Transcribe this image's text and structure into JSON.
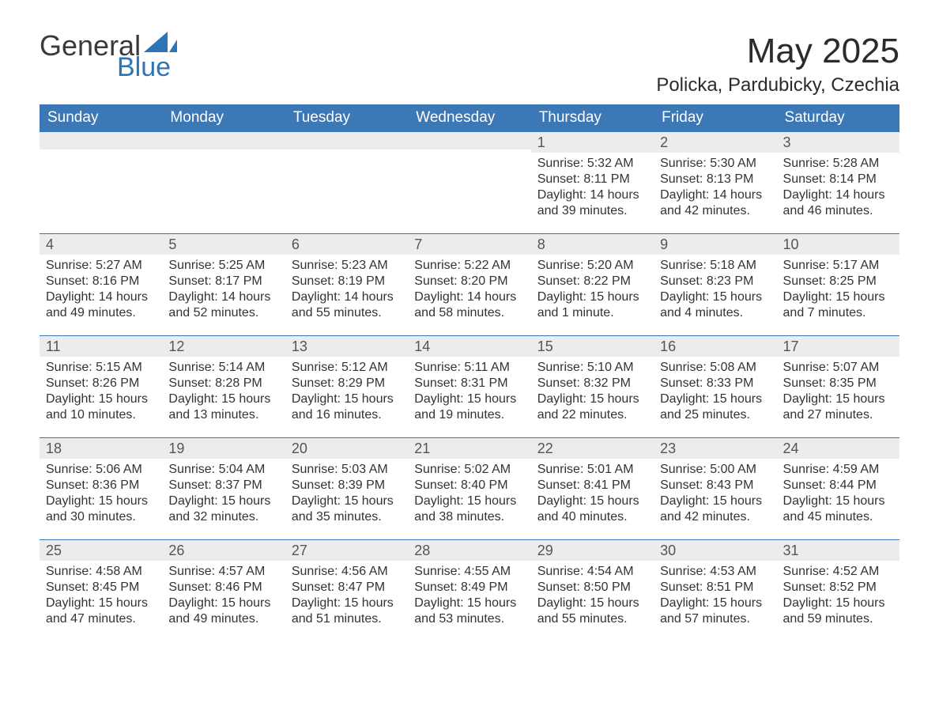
{
  "logo": {
    "text1": "General",
    "text2": "Blue"
  },
  "title": "May 2025",
  "location": "Policka, Pardubicky, Czechia",
  "dow_labels": [
    "Sunday",
    "Monday",
    "Tuesday",
    "Wednesday",
    "Thursday",
    "Friday",
    "Saturday"
  ],
  "colors": {
    "header_bg": "#3b78b5",
    "row_border": "#3b78b5",
    "daynum_bg": "#ececec",
    "text": "#333333",
    "logo_blue": "#2e75b6"
  },
  "fonts": {
    "month_title_pt": 44,
    "location_pt": 24,
    "dow_pt": 19,
    "daynum_pt": 18,
    "body_pt": 16
  },
  "layout": {
    "columns": 7,
    "rows": 5,
    "first_day_column": 4
  },
  "weeks": [
    [
      null,
      null,
      null,
      null,
      {
        "n": "1",
        "sr": "5:32 AM",
        "ss": "8:11 PM",
        "dl": "14 hours and 39 minutes."
      },
      {
        "n": "2",
        "sr": "5:30 AM",
        "ss": "8:13 PM",
        "dl": "14 hours and 42 minutes."
      },
      {
        "n": "3",
        "sr": "5:28 AM",
        "ss": "8:14 PM",
        "dl": "14 hours and 46 minutes."
      }
    ],
    [
      {
        "n": "4",
        "sr": "5:27 AM",
        "ss": "8:16 PM",
        "dl": "14 hours and 49 minutes."
      },
      {
        "n": "5",
        "sr": "5:25 AM",
        "ss": "8:17 PM",
        "dl": "14 hours and 52 minutes."
      },
      {
        "n": "6",
        "sr": "5:23 AM",
        "ss": "8:19 PM",
        "dl": "14 hours and 55 minutes."
      },
      {
        "n": "7",
        "sr": "5:22 AM",
        "ss": "8:20 PM",
        "dl": "14 hours and 58 minutes."
      },
      {
        "n": "8",
        "sr": "5:20 AM",
        "ss": "8:22 PM",
        "dl": "15 hours and 1 minute."
      },
      {
        "n": "9",
        "sr": "5:18 AM",
        "ss": "8:23 PM",
        "dl": "15 hours and 4 minutes."
      },
      {
        "n": "10",
        "sr": "5:17 AM",
        "ss": "8:25 PM",
        "dl": "15 hours and 7 minutes."
      }
    ],
    [
      {
        "n": "11",
        "sr": "5:15 AM",
        "ss": "8:26 PM",
        "dl": "15 hours and 10 minutes."
      },
      {
        "n": "12",
        "sr": "5:14 AM",
        "ss": "8:28 PM",
        "dl": "15 hours and 13 minutes."
      },
      {
        "n": "13",
        "sr": "5:12 AM",
        "ss": "8:29 PM",
        "dl": "15 hours and 16 minutes."
      },
      {
        "n": "14",
        "sr": "5:11 AM",
        "ss": "8:31 PM",
        "dl": "15 hours and 19 minutes."
      },
      {
        "n": "15",
        "sr": "5:10 AM",
        "ss": "8:32 PM",
        "dl": "15 hours and 22 minutes."
      },
      {
        "n": "16",
        "sr": "5:08 AM",
        "ss": "8:33 PM",
        "dl": "15 hours and 25 minutes."
      },
      {
        "n": "17",
        "sr": "5:07 AM",
        "ss": "8:35 PM",
        "dl": "15 hours and 27 minutes."
      }
    ],
    [
      {
        "n": "18",
        "sr": "5:06 AM",
        "ss": "8:36 PM",
        "dl": "15 hours and 30 minutes."
      },
      {
        "n": "19",
        "sr": "5:04 AM",
        "ss": "8:37 PM",
        "dl": "15 hours and 32 minutes."
      },
      {
        "n": "20",
        "sr": "5:03 AM",
        "ss": "8:39 PM",
        "dl": "15 hours and 35 minutes."
      },
      {
        "n": "21",
        "sr": "5:02 AM",
        "ss": "8:40 PM",
        "dl": "15 hours and 38 minutes."
      },
      {
        "n": "22",
        "sr": "5:01 AM",
        "ss": "8:41 PM",
        "dl": "15 hours and 40 minutes."
      },
      {
        "n": "23",
        "sr": "5:00 AM",
        "ss": "8:43 PM",
        "dl": "15 hours and 42 minutes."
      },
      {
        "n": "24",
        "sr": "4:59 AM",
        "ss": "8:44 PM",
        "dl": "15 hours and 45 minutes."
      }
    ],
    [
      {
        "n": "25",
        "sr": "4:58 AM",
        "ss": "8:45 PM",
        "dl": "15 hours and 47 minutes."
      },
      {
        "n": "26",
        "sr": "4:57 AM",
        "ss": "8:46 PM",
        "dl": "15 hours and 49 minutes."
      },
      {
        "n": "27",
        "sr": "4:56 AM",
        "ss": "8:47 PM",
        "dl": "15 hours and 51 minutes."
      },
      {
        "n": "28",
        "sr": "4:55 AM",
        "ss": "8:49 PM",
        "dl": "15 hours and 53 minutes."
      },
      {
        "n": "29",
        "sr": "4:54 AM",
        "ss": "8:50 PM",
        "dl": "15 hours and 55 minutes."
      },
      {
        "n": "30",
        "sr": "4:53 AM",
        "ss": "8:51 PM",
        "dl": "15 hours and 57 minutes."
      },
      {
        "n": "31",
        "sr": "4:52 AM",
        "ss": "8:52 PM",
        "dl": "15 hours and 59 minutes."
      }
    ]
  ],
  "labels": {
    "sunrise": "Sunrise: ",
    "sunset": "Sunset: ",
    "daylight": "Daylight: "
  }
}
